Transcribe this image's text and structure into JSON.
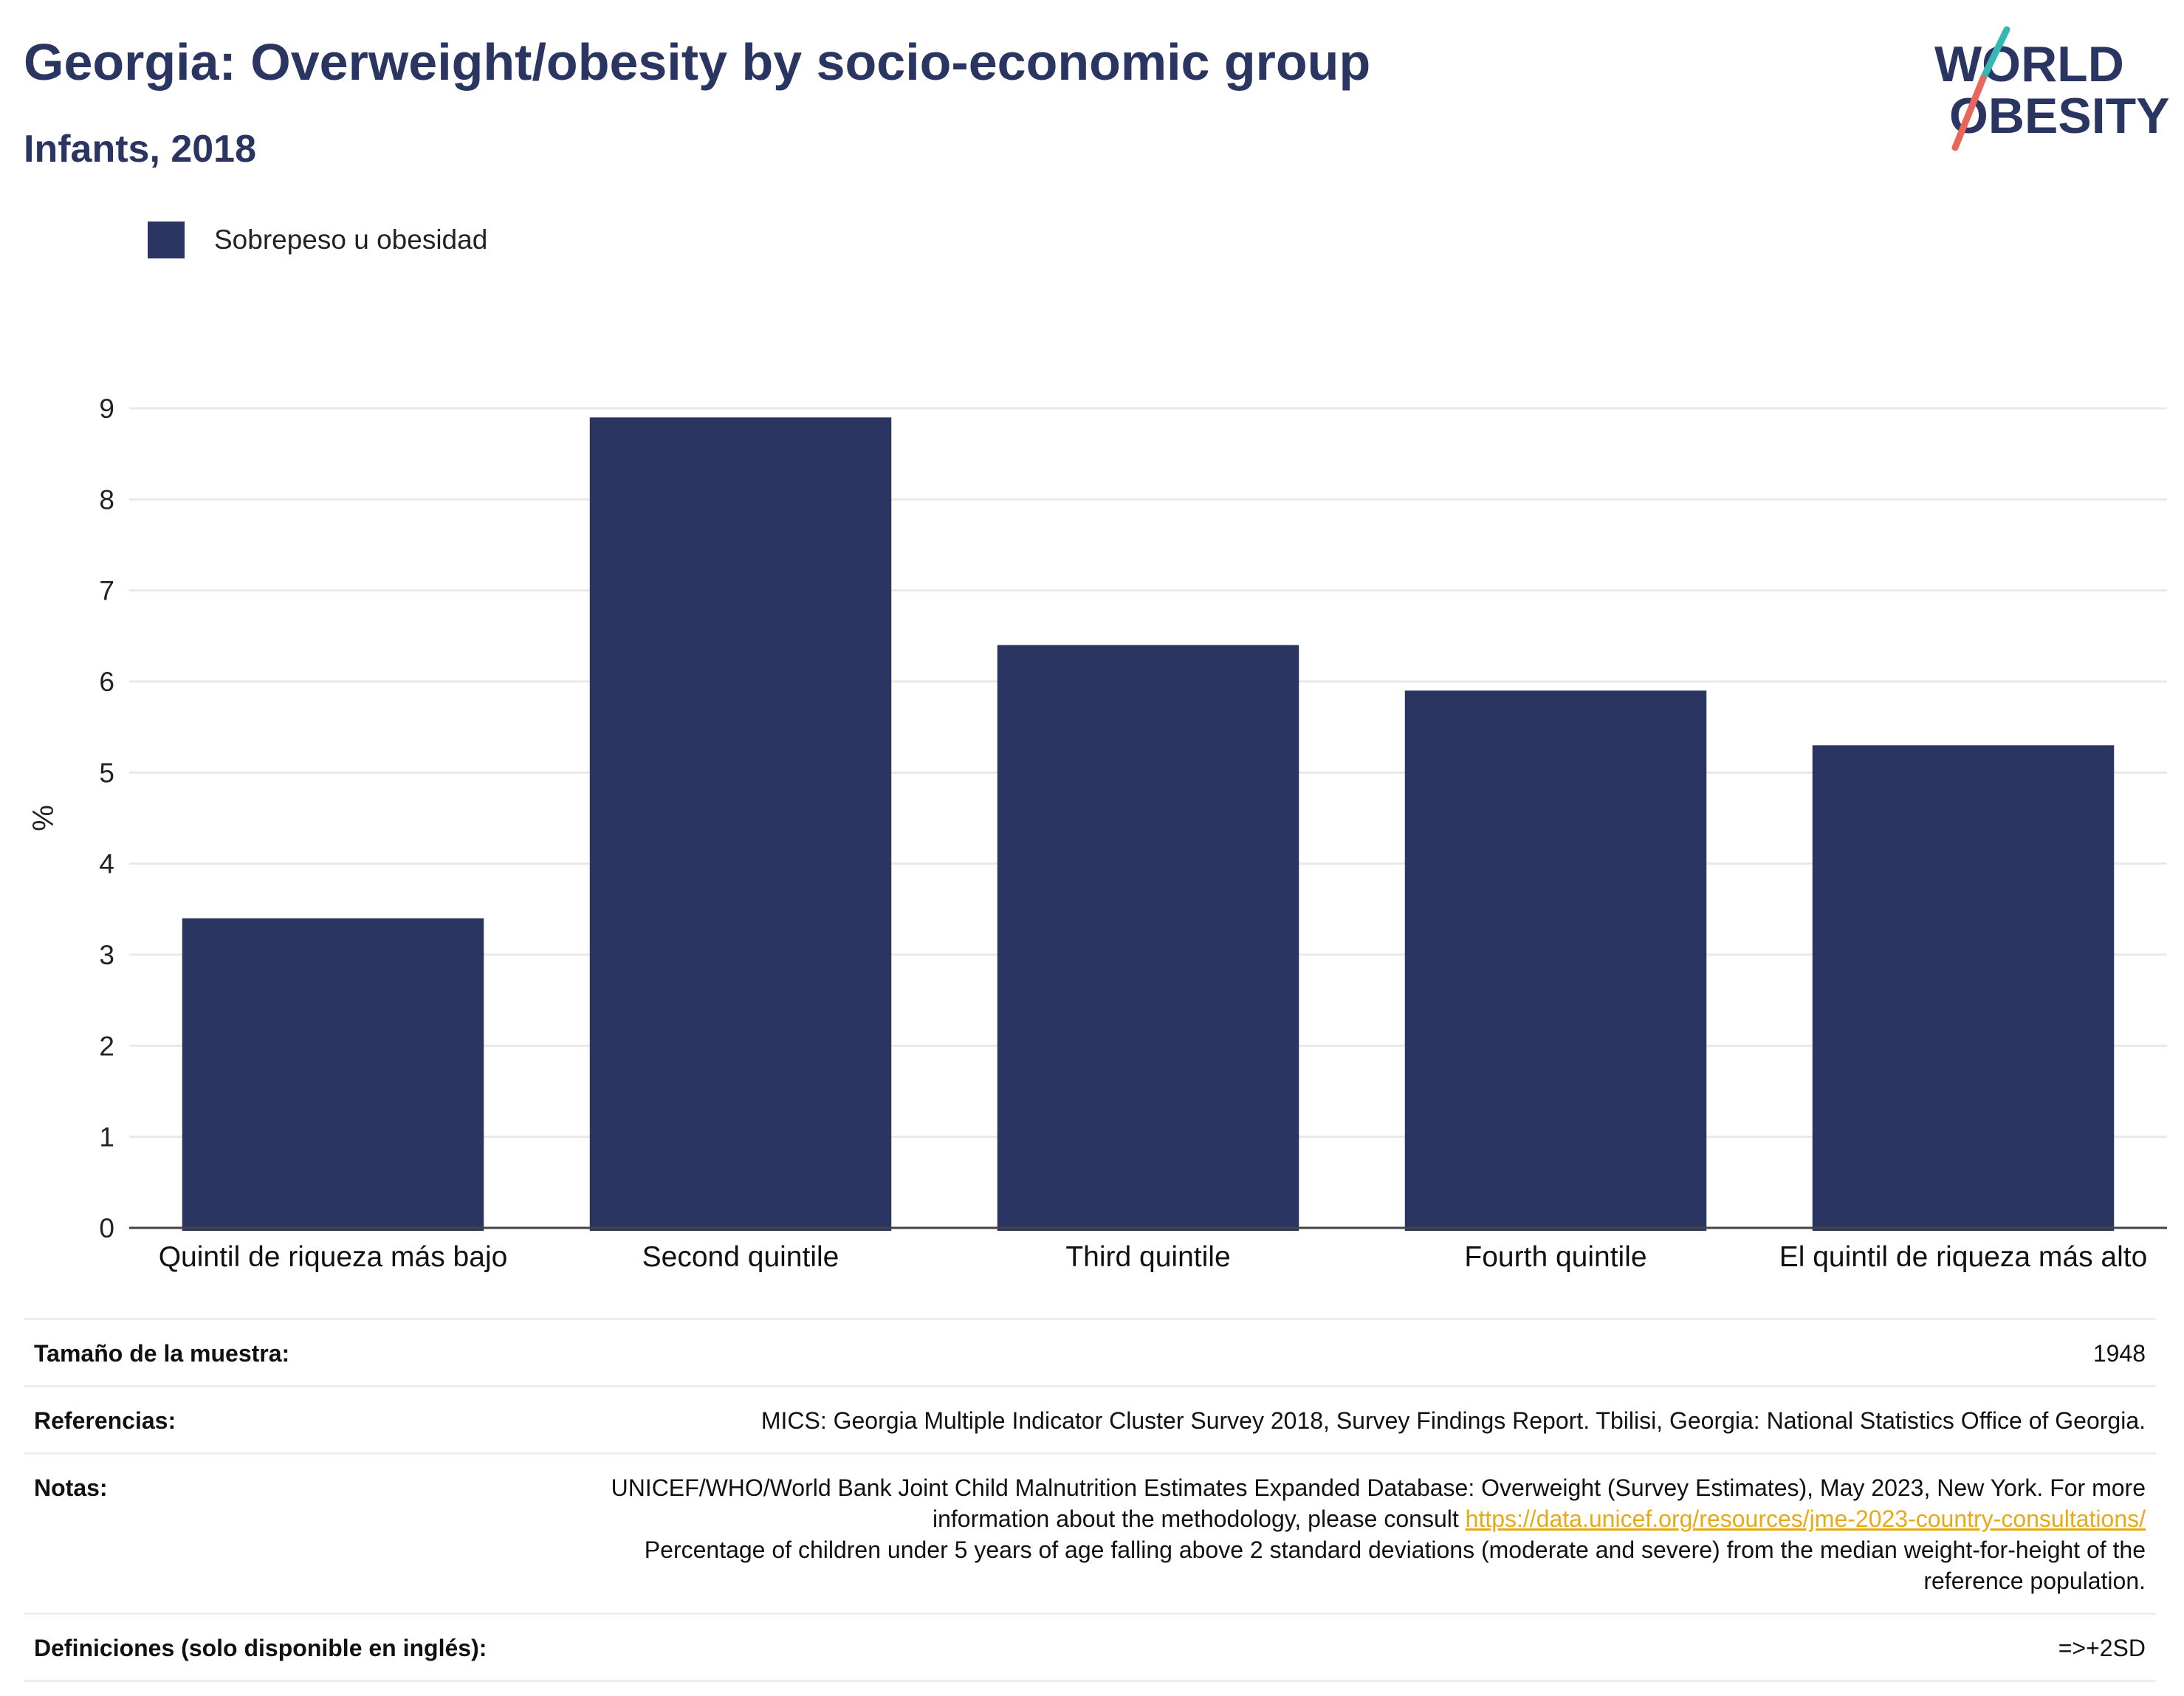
{
  "header": {
    "title": "Georgia: Overweight/obesity by socio-economic group",
    "subtitle": "Infants, 2018"
  },
  "logo": {
    "line1": "WORLD",
    "line2": "OBESITY",
    "slash_top_color": "#35b8b3",
    "slash_bottom_color": "#e7685a"
  },
  "colors": {
    "bar": "#2a3561",
    "title": "#2a3561"
  },
  "chart_data": {
    "type": "bar",
    "categories": [
      "Quintil de riqueza más bajo",
      "Second quintile",
      "Third quintile",
      "Fourth quintile",
      "El quintil de riqueza más alto"
    ],
    "series": [
      {
        "name": "Sobrepeso u obesidad",
        "values": [
          3.4,
          8.9,
          6.4,
          5.9,
          5.3
        ]
      }
    ],
    "ylabel": "%",
    "ylim": [
      0,
      9
    ],
    "yticks": [
      0,
      1,
      2,
      3,
      4,
      5,
      6,
      7,
      8,
      9
    ],
    "grid": true,
    "legend": "top-left"
  },
  "footer": {
    "sample_label": "Tamaño de la muestra:",
    "sample_value": "1948",
    "references_label": "Referencias:",
    "references_value": "MICS: Georgia Multiple Indicator Cluster Survey 2018, Survey Findings Report. Tbilisi, Georgia: National Statistics Office of Georgia.",
    "notes_label": "Notas:",
    "notes_text1": "UNICEF/WHO/World Bank Joint Child Malnutrition Estimates Expanded Database: Overweight (Survey Estimates), May 2023, New York. For more information about the methodology, please consult ",
    "notes_link": "https://data.unicef.org/resources/jme-2023-country-consultations/",
    "notes_text2": "Percentage of children under 5 years of age falling above 2 standard deviations (moderate and severe) from the median weight-for-height of the reference population.",
    "definitions_label": "Definiciones (solo disponible en inglés):",
    "definitions_value": "=>+2SD"
  }
}
